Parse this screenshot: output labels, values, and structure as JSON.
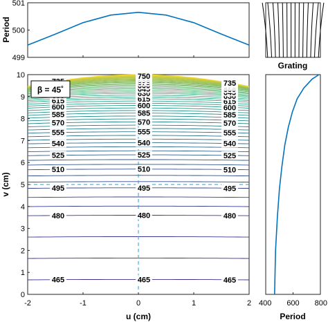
{
  "chart_data": [
    {
      "type": "line",
      "panel": "top",
      "ylabel": "Period",
      "xlim": [
        -2,
        2
      ],
      "ylim": [
        499,
        501
      ],
      "y_ticks": [
        "499",
        "500",
        "501"
      ],
      "series": [
        {
          "color": "#0072BD",
          "x": [
            -2,
            -1.5,
            -1,
            -0.5,
            0,
            0.5,
            1,
            1.5,
            2
          ],
          "y": [
            499.45,
            499.85,
            500.27,
            500.55,
            500.65,
            500.55,
            500.27,
            499.85,
            499.45
          ]
        }
      ]
    },
    {
      "type": "image",
      "panel": "grating",
      "title": "Grating",
      "description_lines": 14
    },
    {
      "type": "contour",
      "panel": "main",
      "xlabel": "u (cm)",
      "ylabel": "v (cm)",
      "annotation": "β = 45˚",
      "xlim": [
        -2,
        2
      ],
      "ylim": [
        0,
        10
      ],
      "x_ticks": [
        "-2",
        "-1",
        "0",
        "1",
        "2"
      ],
      "y_ticks": [
        "0",
        "1",
        "2",
        "3",
        "4",
        "5",
        "6",
        "7",
        "8",
        "9",
        "10"
      ],
      "contour_levels": [
        465,
        480,
        495,
        510,
        525,
        540,
        555,
        570,
        585,
        600,
        615,
        630,
        645,
        660,
        675,
        690,
        705,
        720,
        735,
        750
      ],
      "contour_v_at_center": [
        0.68,
        3.6,
        4.85,
        5.7,
        6.35,
        6.9,
        7.4,
        7.85,
        8.25,
        8.6,
        8.9,
        9.15,
        9.35,
        9.52,
        9.65,
        9.75,
        9.84,
        9.91,
        9.97,
        10.0
      ],
      "color_low": "#3a2c8f",
      "color_mid": "#21a38a",
      "color_high": "#f3d630",
      "labels_center": [
        "465",
        "480",
        "495",
        "510",
        "525",
        "540",
        "555",
        "570",
        "585",
        "600",
        "615",
        "630",
        "645",
        "660",
        "675",
        "690",
        "705",
        "720",
        "750"
      ],
      "labels_left": [
        "465",
        "480",
        "495",
        "510",
        "525",
        "540",
        "555",
        "570",
        "585",
        "600",
        "615",
        "630",
        "645",
        "720",
        "735"
      ],
      "labels_right": [
        "465",
        "480",
        "495",
        "510",
        "525",
        "540",
        "555",
        "570",
        "585",
        "600",
        "615",
        "630",
        "645",
        "660",
        "675",
        "690",
        "705",
        "720",
        "735"
      ],
      "dashed_lines": [
        {
          "u": 0
        },
        {
          "v": 5
        }
      ]
    },
    {
      "type": "line",
      "panel": "right",
      "xlabel": "Period",
      "xlim": [
        400,
        800
      ],
      "ylim": [
        0,
        10
      ],
      "x_ticks": [
        "400",
        "600",
        "800"
      ],
      "series": [
        {
          "color": "#0072BD",
          "x": [
            465,
            472,
            485,
            500,
            518,
            540,
            565,
            595,
            630,
            680,
            740,
            790
          ],
          "y": [
            0,
            2,
            3.5,
            4.8,
            5.8,
            6.8,
            7.6,
            8.3,
            8.9,
            9.4,
            9.8,
            10
          ]
        }
      ]
    }
  ]
}
